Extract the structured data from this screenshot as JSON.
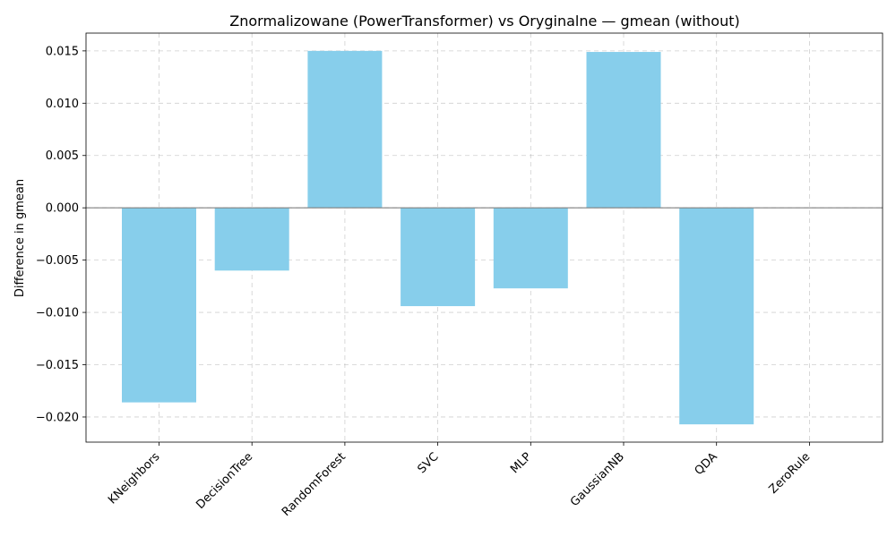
{
  "chart_data": {
    "type": "bar",
    "title": "Znormalizowane (PowerTransformer) vs Oryginalne — gmean (without)",
    "xlabel": "",
    "ylabel": "Difference in gmean",
    "categories": [
      "KNeighbors",
      "DecisionTree",
      "RandomForest",
      "SVC",
      "MLP",
      "GaussianNB",
      "QDA",
      "ZeroRule"
    ],
    "values": [
      -0.0186,
      -0.006,
      0.015,
      -0.0094,
      -0.0077,
      0.0149,
      -0.0207,
      0.0
    ],
    "ylim": [
      -0.0224,
      0.0167
    ],
    "yticks": [
      -0.02,
      -0.015,
      -0.01,
      -0.005,
      0.0,
      0.005,
      0.01,
      0.015
    ],
    "ytick_labels": [
      "−0.020",
      "−0.015",
      "−0.010",
      "−0.005",
      "0.000",
      "0.005",
      "0.010",
      "0.015"
    ],
    "bar_color": "#87CEEB",
    "zero_line_color": "#808080",
    "grid": true
  }
}
